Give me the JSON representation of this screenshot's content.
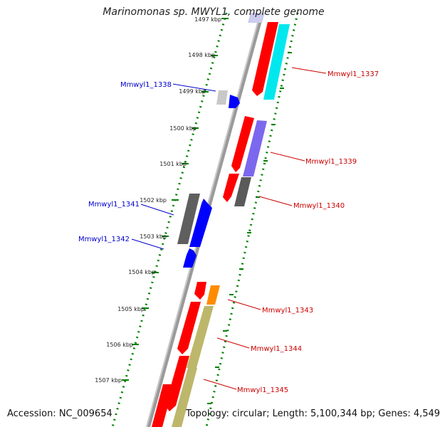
{
  "title": "Marinomonas sp. MWYL1, complete genome",
  "footer": {
    "accession": "Accession: NC_009654",
    "topology": "Topology: circular; Length: 5,100,344 bp; Genes: 4,549"
  },
  "colors": {
    "cds_red": "#ff0000",
    "cds_blue": "#0000ff",
    "backbone": "#888888",
    "dotted_track": "#008000",
    "cyan": "#00e5ee",
    "purple": "#7b68ee",
    "gray": "#606060",
    "orange": "#ff8c00",
    "khaki": "#bdb76b",
    "light_gray": "#c8c8c8"
  },
  "ticks": [
    "1497 kbp",
    "1498 kbp",
    "1499 kbp",
    "1500 kbp",
    "1501 kbp",
    "1502 kbp",
    "1503 kbp",
    "1504 kbp",
    "1505 kbp",
    "1506 kbp",
    "1507 kbp"
  ],
  "genes_left": [
    {
      "name": "Mmwyl1_1338"
    },
    {
      "name": "Mmwyl1_1341"
    },
    {
      "name": "Mmwyl1_1342"
    }
  ],
  "genes_right": [
    {
      "name": "Mmwyl1_1337"
    },
    {
      "name": "Mmwyl1_1339"
    },
    {
      "name": "Mmwyl1_1340"
    },
    {
      "name": "Mmwyl1_1343"
    },
    {
      "name": "Mmwyl1_1344"
    },
    {
      "name": "Mmwyl1_1345"
    }
  ]
}
